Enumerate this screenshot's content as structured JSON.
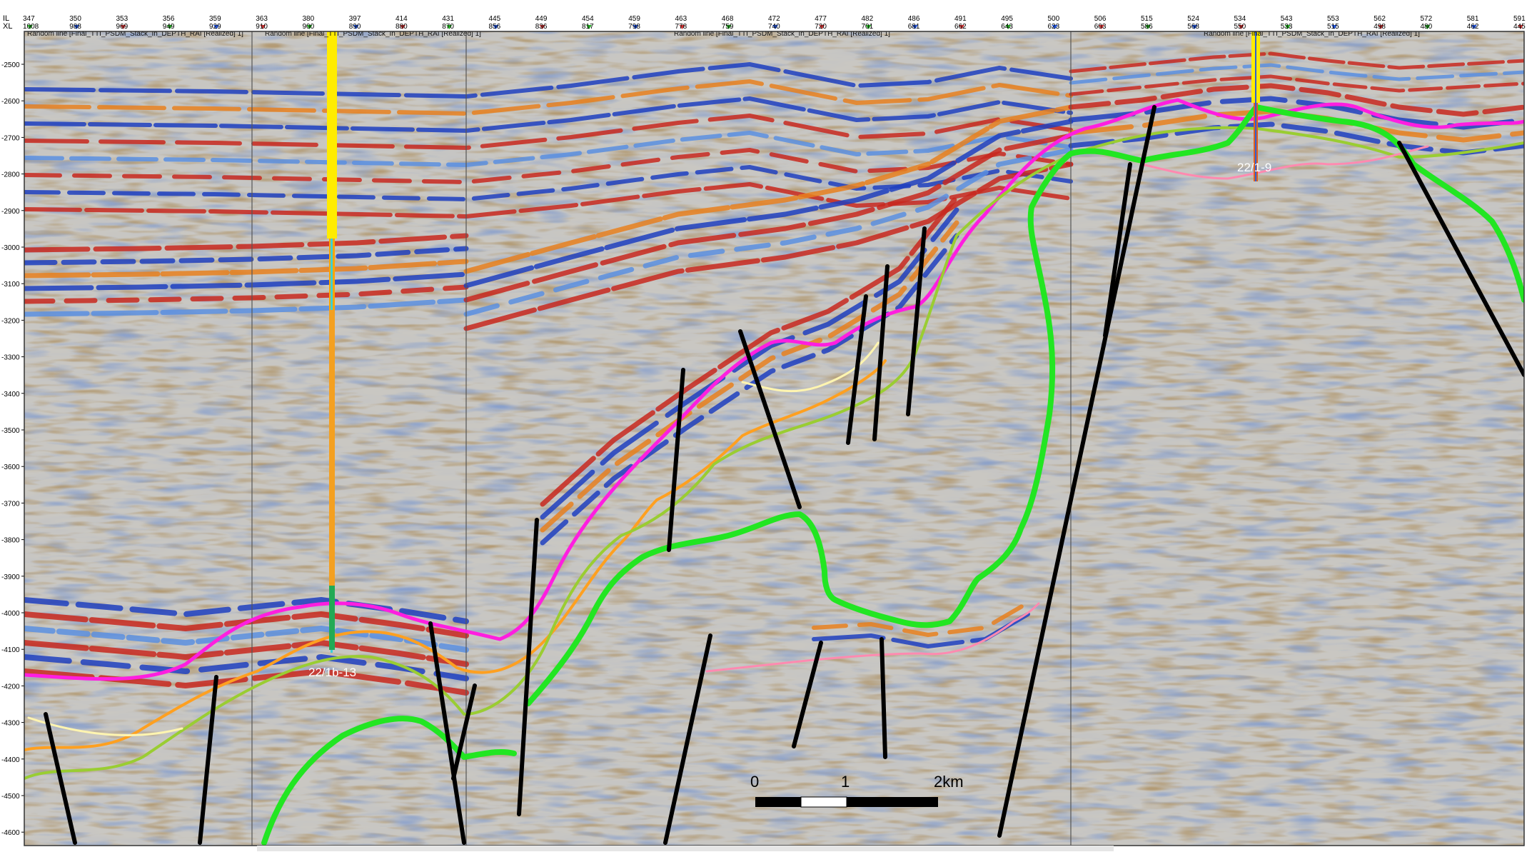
{
  "panel_titles": [
    "Random line [Final_TTI_PSDM_Stack_In_DEPTH_RAI [Realized] 1]",
    "Random line [Final_TTI_PSDM_Stack_In_DEPTH_RAI [Realized] 1]",
    "Random line [Final_TTI_PSDM_Stack_In_DEPTH_RAI [Realized] 1]",
    "Random line [Final_TTI_PSDM_Stack_In_DEPTH_RAI [Realized] 1]"
  ],
  "header": {
    "row_labels": [
      "IL",
      "XL"
    ],
    "il_values": [
      "347",
      "350",
      "353",
      "356",
      "359",
      "363",
      "380",
      "397",
      "414",
      "431",
      "445",
      "449",
      "454",
      "459",
      "463",
      "468",
      "472",
      "477",
      "482",
      "486",
      "491",
      "495",
      "500",
      "506",
      "515",
      "524",
      "534",
      "543",
      "553",
      "562",
      "572",
      "581",
      "591"
    ],
    "xl_values": [
      "1008",
      "988",
      "969",
      "949",
      "929",
      "910",
      "900",
      "890",
      "880",
      "870",
      "856",
      "836",
      "817",
      "798",
      "778",
      "759",
      "740",
      "720",
      "701",
      "681",
      "662",
      "643",
      "623",
      "603",
      "586",
      "568",
      "550",
      "533",
      "515",
      "498",
      "480",
      "462",
      "445"
    ]
  },
  "depth_axis": {
    "ticks": [
      "-2500",
      "-2600",
      "-2700",
      "-2800",
      "-2900",
      "-3000",
      "-3100",
      "-3200",
      "-3300",
      "-3400",
      "-3500",
      "-3600",
      "-3700",
      "-3800",
      "-3900",
      "-4000",
      "-4100",
      "-4200",
      "-4300",
      "-4400",
      "-4500",
      "-4600"
    ]
  },
  "wells": [
    {
      "name": "22/1b-13"
    },
    {
      "name": "22/1-9"
    }
  ],
  "scale_bar": {
    "labels": [
      "0",
      "1",
      "2km"
    ]
  },
  "colors": {
    "horizon_magenta": "#ff1ee0",
    "horizon_orange": "#ffa020",
    "horizon_green": "#9acd32",
    "horizon_yellow": "#fff5b0",
    "horizon_pink": "#ff8ab0",
    "salt_outline": "#22e622",
    "fault": "#000000"
  }
}
